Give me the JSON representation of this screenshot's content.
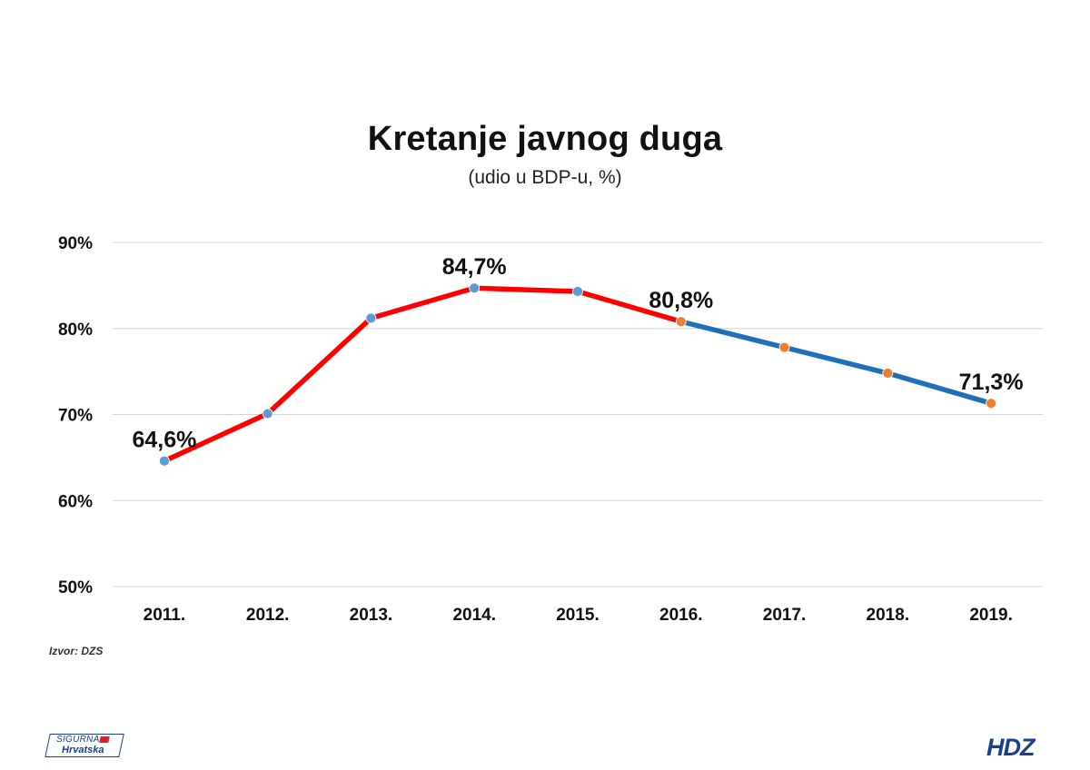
{
  "chart_data": {
    "type": "line",
    "title": "Kretanje javnog duga",
    "subtitle": "(udio u BDP-u, %)",
    "xlabel": "",
    "ylabel": "",
    "categories": [
      "2011.",
      "2012.",
      "2013.",
      "2014.",
      "2015.",
      "2016.",
      "2017.",
      "2018.",
      "2019."
    ],
    "series": [
      {
        "values": [
          64.6,
          70.1,
          81.2,
          84.7,
          84.3,
          80.8,
          null,
          null,
          null
        ],
        "color": "#ff0000"
      },
      {
        "values": [
          null,
          null,
          null,
          null,
          null,
          80.8,
          77.8,
          74.8,
          71.3
        ],
        "color": "#1f6fb8"
      }
    ],
    "marker_colors": [
      "#5b9bd5",
      "#5b9bd5",
      "#5b9bd5",
      "#5b9bd5",
      "#5b9bd5",
      "#ed7d31",
      "#ed7d31",
      "#ed7d31",
      "#ed7d31"
    ],
    "data_labels": [
      {
        "index": 0,
        "text": "64,6%"
      },
      {
        "index": 3,
        "text": "84,7%"
      },
      {
        "index": 5,
        "text": "80,8%"
      },
      {
        "index": 8,
        "text": "71,3%"
      }
    ],
    "y_ticks": [
      {
        "value": 50,
        "label": "50%"
      },
      {
        "value": 60,
        "label": "60%"
      },
      {
        "value": 70,
        "label": "70%"
      },
      {
        "value": 80,
        "label": "80%"
      },
      {
        "value": 90,
        "label": "90%"
      }
    ],
    "ylim": [
      50,
      90
    ],
    "grid": true,
    "legend": "none"
  },
  "source": "Izvor: DZS",
  "logos": {
    "left_line1": "SIGURNA",
    "left_line2": "Hrvatska",
    "right": "HDZ"
  }
}
